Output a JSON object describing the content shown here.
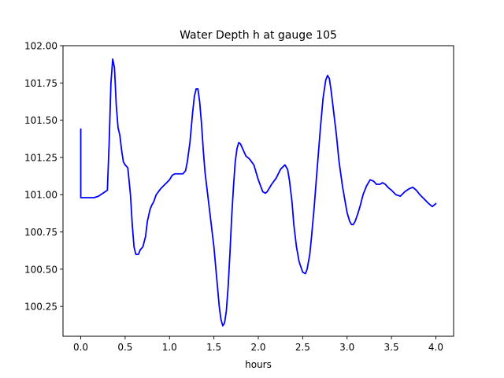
{
  "chart_data": {
    "type": "line",
    "title": "Water Depth h at gauge 105",
    "xlabel": "hours",
    "ylabel": "",
    "xlim": [
      -0.2,
      4.2
    ],
    "ylim": [
      100.05,
      102.0
    ],
    "x_ticks": [
      0.0,
      0.5,
      1.0,
      1.5,
      2.0,
      2.5,
      3.0,
      3.5,
      4.0
    ],
    "x_tick_labels": [
      "0.0",
      "0.5",
      "1.0",
      "1.5",
      "2.0",
      "2.5",
      "3.0",
      "3.5",
      "4.0"
    ],
    "y_ticks": [
      100.25,
      100.5,
      100.75,
      101.0,
      101.25,
      101.5,
      101.75,
      102.0
    ],
    "y_tick_labels": [
      "100.25",
      "100.50",
      "100.75",
      "101.00",
      "101.25",
      "101.50",
      "101.75",
      "102.00"
    ],
    "grid": false,
    "series": [
      {
        "color": "#0000ff",
        "x": [
          0.0,
          0.0,
          0.05,
          0.1,
          0.15,
          0.2,
          0.25,
          0.3,
          0.32,
          0.34,
          0.36,
          0.38,
          0.4,
          0.42,
          0.44,
          0.46,
          0.48,
          0.5,
          0.53,
          0.56,
          0.58,
          0.6,
          0.62,
          0.65,
          0.67,
          0.7,
          0.73,
          0.75,
          0.78,
          0.8,
          0.82,
          0.85,
          0.9,
          0.95,
          1.0,
          1.03,
          1.06,
          1.1,
          1.15,
          1.18,
          1.2,
          1.23,
          1.26,
          1.28,
          1.3,
          1.32,
          1.34,
          1.36,
          1.38,
          1.4,
          1.43,
          1.46,
          1.5,
          1.53,
          1.56,
          1.58,
          1.6,
          1.62,
          1.64,
          1.66,
          1.68,
          1.7,
          1.72,
          1.74,
          1.76,
          1.78,
          1.8,
          1.83,
          1.86,
          1.9,
          1.95,
          2.0,
          2.05,
          2.08,
          2.1,
          2.12,
          2.15,
          2.2,
          2.25,
          2.3,
          2.33,
          2.35,
          2.38,
          2.4,
          2.43,
          2.46,
          2.5,
          2.53,
          2.55,
          2.58,
          2.6,
          2.63,
          2.66,
          2.7,
          2.73,
          2.76,
          2.78,
          2.8,
          2.82,
          2.85,
          2.88,
          2.91,
          2.95,
          3.0,
          3.03,
          3.05,
          3.07,
          3.09,
          3.12,
          3.15,
          3.18,
          3.22,
          3.26,
          3.3,
          3.33,
          3.37,
          3.4,
          3.43,
          3.46,
          3.5,
          3.55,
          3.6,
          3.65,
          3.7,
          3.74,
          3.78,
          3.82,
          3.87,
          3.92,
          3.96,
          4.0
        ],
        "values": [
          101.44,
          100.98,
          100.98,
          100.98,
          100.98,
          100.99,
          101.01,
          101.03,
          101.35,
          101.75,
          101.91,
          101.85,
          101.6,
          101.45,
          101.4,
          101.3,
          101.22,
          101.2,
          101.18,
          101.0,
          100.8,
          100.65,
          100.6,
          100.6,
          100.63,
          100.65,
          100.72,
          100.82,
          100.9,
          100.93,
          100.95,
          101.0,
          101.04,
          101.07,
          101.1,
          101.13,
          101.14,
          101.14,
          101.14,
          101.16,
          101.22,
          101.35,
          101.55,
          101.66,
          101.71,
          101.71,
          101.62,
          101.48,
          101.3,
          101.15,
          101.0,
          100.85,
          100.65,
          100.45,
          100.25,
          100.16,
          100.12,
          100.14,
          100.22,
          100.38,
          100.6,
          100.85,
          101.05,
          101.22,
          101.31,
          101.35,
          101.34,
          101.3,
          101.26,
          101.24,
          101.2,
          101.1,
          101.02,
          101.01,
          101.02,
          101.04,
          101.07,
          101.11,
          101.17,
          101.2,
          101.17,
          101.1,
          100.95,
          100.8,
          100.65,
          100.55,
          100.48,
          100.47,
          100.5,
          100.6,
          100.72,
          100.92,
          101.15,
          101.45,
          101.65,
          101.77,
          101.8,
          101.78,
          101.7,
          101.55,
          101.4,
          101.22,
          101.05,
          100.88,
          100.82,
          100.8,
          100.8,
          100.82,
          100.87,
          100.93,
          101.0,
          101.06,
          101.1,
          101.09,
          101.07,
          101.07,
          101.08,
          101.07,
          101.05,
          101.03,
          101.0,
          100.99,
          101.02,
          101.04,
          101.05,
          101.03,
          101.0,
          100.97,
          100.94,
          100.92,
          100.94
        ]
      }
    ]
  }
}
